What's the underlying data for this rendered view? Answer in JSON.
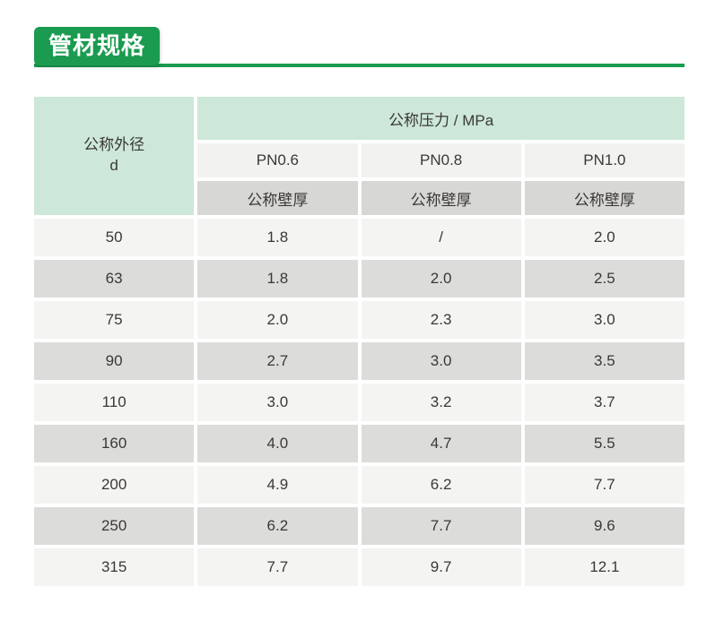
{
  "header": {
    "title": "管材规格"
  },
  "colors": {
    "brand_green": "#1a9b4f",
    "header_light_green": "#cde8d8",
    "pn_row_bg": "#f2f2f0",
    "wall_row_bg": "#d7d7d5",
    "row_light": "#f4f4f2",
    "row_dark": "#dcdcda",
    "text_dark": "#3b3835",
    "title_text": "#ffffff"
  },
  "table": {
    "corner_header": {
      "line1": "公称外径",
      "line2": "d"
    },
    "pressure_header": "公称压力 / MPa",
    "pn_labels": [
      "PN0.6",
      "PN0.8",
      "PN1.0"
    ],
    "wall_label": "公称壁厚",
    "rows": [
      {
        "d": "50",
        "v": [
          "1.8",
          "/",
          "2.0"
        ]
      },
      {
        "d": "63",
        "v": [
          "1.8",
          "2.0",
          "2.5"
        ]
      },
      {
        "d": "75",
        "v": [
          "2.0",
          "2.3",
          "3.0"
        ]
      },
      {
        "d": "90",
        "v": [
          "2.7",
          "3.0",
          "3.5"
        ]
      },
      {
        "d": "110",
        "v": [
          "3.0",
          "3.2",
          "3.7"
        ]
      },
      {
        "d": "160",
        "v": [
          "4.0",
          "4.7",
          "5.5"
        ]
      },
      {
        "d": "200",
        "v": [
          "4.9",
          "6.2",
          "7.7"
        ]
      },
      {
        "d": "250",
        "v": [
          "6.2",
          "7.7",
          "9.6"
        ]
      },
      {
        "d": "315",
        "v": [
          "7.7",
          "9.7",
          "12.1"
        ]
      }
    ]
  }
}
